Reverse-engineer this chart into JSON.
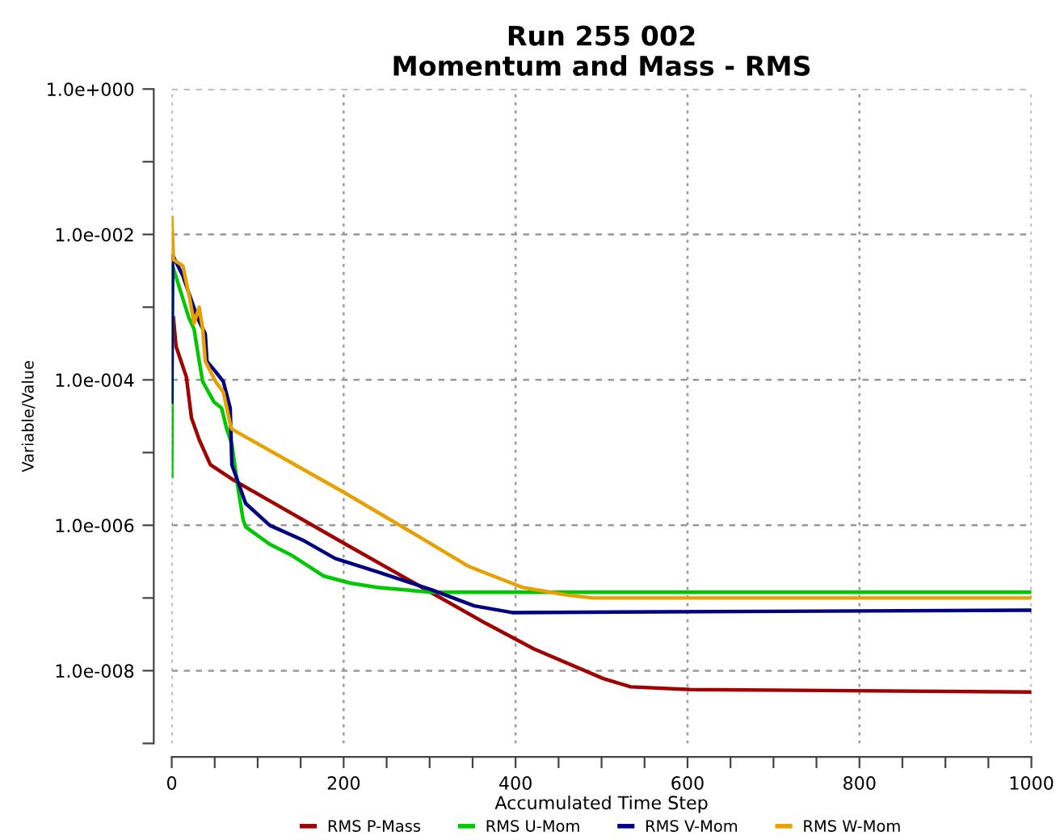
{
  "chart_data": {
    "type": "line",
    "title": "Run 255 002\nMomentum and Mass - RMS",
    "xlabel": "Accumulated Time Step",
    "ylabel": "Variable/Value",
    "log": "y",
    "grid": true,
    "legend": "bottom",
    "line_style": "solid",
    "marker": "none",
    "xlim": [
      0,
      1000
    ],
    "xticks": [
      0,
      {
        "value": 50,
        "label": null
      },
      {
        "value": 100,
        "label": null
      },
      {
        "value": 150,
        "label": null
      },
      200,
      {
        "value": 250,
        "label": null
      },
      {
        "value": 300,
        "label": null
      },
      {
        "value": 350,
        "label": null
      },
      400,
      {
        "value": 450,
        "label": null
      },
      {
        "value": 500,
        "label": null
      },
      {
        "value": 550,
        "label": null
      },
      600,
      {
        "value": 650,
        "label": null
      },
      {
        "value": 700,
        "label": null
      },
      {
        "value": 750,
        "label": null
      },
      800,
      {
        "value": 850,
        "label": null
      },
      {
        "value": 900,
        "label": null
      },
      {
        "value": 950,
        "label": null
      },
      1000
    ],
    "ylim": [
      1e-09,
      1
    ],
    "yticks": [
      {
        "value": 1e-09,
        "label": null
      },
      {
        "value": 1e-08,
        "label": "1.0e-008"
      },
      {
        "value": 1e-07,
        "label": null
      },
      {
        "value": 1e-06,
        "label": "1.0e-006"
      },
      {
        "value": 1e-05,
        "label": null
      },
      {
        "value": 0.0001,
        "label": "1.0e-004"
      },
      {
        "value": 0.001,
        "label": null
      },
      {
        "value": 0.01,
        "label": "1.0e-002"
      },
      {
        "value": 0.1,
        "label": null
      },
      {
        "value": 1,
        "label": "1.0e+000"
      }
    ],
    "series": [
      {
        "name": "RMS P-Mass",
        "color": "#a00000",
        "x": [
          2,
          5,
          17,
          23,
          32,
          45,
          73,
          201,
          365,
          421,
          502,
          534,
          603,
          1000
        ],
        "values": [
          0.00071,
          0.00029,
          0.00011,
          3e-05,
          1.5e-05,
          6.8e-06,
          4.1e-06,
          5.6e-07,
          4.5e-08,
          2e-08,
          7.8e-09,
          6e-09,
          5.5e-09,
          5.1e-09
        ]
      },
      {
        "name": "RMS U-Mom",
        "color": "#00c800",
        "x": [
          0,
          1,
          20,
          26,
          32,
          36,
          49,
          58,
          64,
          70,
          77,
          83,
          86,
          114,
          139,
          177,
          208,
          239,
          302,
          421,
          1000
        ],
        "values": [
          4.7e-06,
          0.0037,
          0.00071,
          0.0005,
          0.00018,
          9.5e-05,
          5e-05,
          4.1e-05,
          2.1e-05,
          1.3e-05,
          3.3e-06,
          1.2e-06,
          9.5e-07,
          5.5e-07,
          3.9e-07,
          2e-07,
          1.6e-07,
          1.4e-07,
          1.2e-07,
          1.2e-07,
          1.2e-07
        ]
      },
      {
        "name": "RMS V-Mom",
        "color": "#000080",
        "x": [
          0,
          1,
          13,
          30,
          39,
          41,
          51,
          60,
          68,
          70,
          86,
          114,
          152,
          190,
          239,
          302,
          352,
          396,
          1000
        ],
        "values": [
          5e-05,
          0.0052,
          0.0027,
          0.00071,
          0.00043,
          0.00018,
          0.00013,
          9.5e-05,
          4.1e-05,
          6.8e-06,
          2e-06,
          1e-06,
          6.3e-07,
          3.5e-07,
          2.3e-07,
          1.3e-07,
          7.8e-08,
          6.3e-08,
          6.8e-08
        ]
      },
      {
        "name": "RMS W-Mom",
        "color": "#e8a000",
        "x": [
          0,
          2,
          13,
          21,
          26,
          32,
          36,
          39,
          51,
          60,
          68,
          70,
          199,
          284,
          346,
          408,
          459,
          490,
          1000
        ],
        "values": [
          0.017,
          0.0045,
          0.0037,
          0.0013,
          0.0006,
          0.001,
          0.0005,
          0.00018,
          9.5e-05,
          6.8e-05,
          2.5e-05,
          2.1e-05,
          2.9e-06,
          7.4e-07,
          2.7e-07,
          1.4e-07,
          1.1e-07,
          1e-07,
          1e-07
        ]
      }
    ]
  }
}
